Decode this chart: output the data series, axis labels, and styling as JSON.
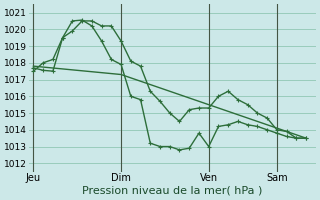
{
  "bg_color": "#cce8e8",
  "grid_color": "#99ccbb",
  "line_color": "#2d6e3a",
  "xlabel": "Pression niveau de la mer( hPa )",
  "xlabel_fontsize": 8,
  "ylim": [
    1011.5,
    1021.5
  ],
  "yticks": [
    1012,
    1013,
    1014,
    1015,
    1016,
    1017,
    1018,
    1019,
    1020,
    1021
  ],
  "ytick_fontsize": 6.5,
  "xtick_labels": [
    "Jeu",
    "Dim",
    "Ven",
    "Sam"
  ],
  "xtick_positions": [
    0,
    9,
    18,
    25
  ],
  "vline_positions": [
    0,
    9,
    18,
    25
  ],
  "xlim": [
    -0.5,
    29
  ],
  "series1_x": [
    0,
    1,
    2,
    3,
    4,
    5,
    6,
    7,
    8,
    9,
    10,
    11,
    12,
    13,
    14,
    15,
    16,
    17,
    18,
    19,
    20,
    21,
    22,
    23,
    24,
    25,
    26,
    27,
    28
  ],
  "series1_y": [
    1017.7,
    1017.55,
    1017.5,
    1019.5,
    1019.9,
    1020.5,
    1020.5,
    1020.2,
    1020.2,
    1019.3,
    1018.1,
    1017.8,
    1016.3,
    1015.7,
    1015.0,
    1014.5,
    1015.2,
    1015.3,
    1015.3,
    1016.0,
    1016.3,
    1015.8,
    1015.5,
    1015.0,
    1014.7,
    1014.0,
    1013.9,
    1013.5,
    1013.5
  ],
  "series2_x": [
    0,
    1,
    2,
    3,
    4,
    5,
    6,
    7,
    8,
    9,
    10,
    11,
    12,
    13,
    14,
    15,
    16,
    17,
    18,
    19,
    20,
    21,
    22,
    23,
    24,
    25,
    26,
    27,
    28
  ],
  "series2_y": [
    1017.5,
    1018.0,
    1018.2,
    1019.5,
    1020.5,
    1020.55,
    1020.2,
    1019.3,
    1018.2,
    1017.9,
    1016.0,
    1015.8,
    1013.2,
    1013.0,
    1013.0,
    1012.8,
    1012.9,
    1013.8,
    1013.0,
    1014.2,
    1014.3,
    1014.5,
    1014.3,
    1014.2,
    1014.0,
    1013.8,
    1013.6,
    1013.5,
    1013.5
  ],
  "series3_x": [
    0,
    9,
    18,
    28
  ],
  "series3_y": [
    1017.8,
    1017.3,
    1015.5,
    1013.5
  ]
}
